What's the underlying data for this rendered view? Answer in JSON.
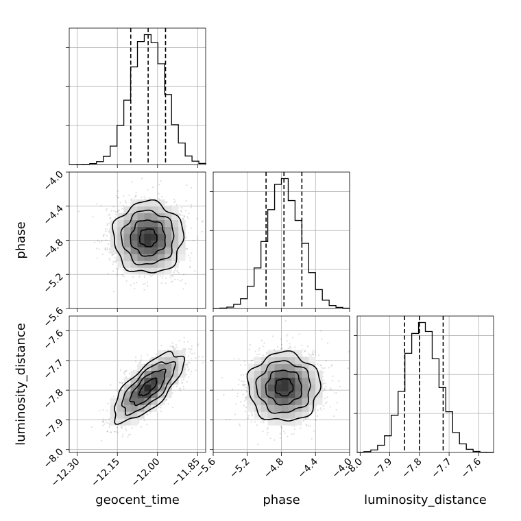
{
  "chart_data": {
    "type": "corner",
    "parameters": [
      "geocent_time",
      "phase",
      "luminosity_distance"
    ],
    "axes": {
      "geocent_time": {
        "range": [
          -12.33,
          -11.82
        ],
        "ticks": [
          -12.3,
          -12.15,
          -12.0,
          -11.85
        ],
        "tick_labels": [
          "−12.30",
          "−12.15",
          "−12.00",
          "−11.85"
        ],
        "mean": -12.035,
        "sd": 0.065
      },
      "phase": {
        "range": [
          -5.6,
          -4.0
        ],
        "ticks": [
          -5.6,
          -5.2,
          -4.8,
          -4.4,
          -4.0
        ],
        "tick_labels": [
          "−5.6",
          "−5.2",
          "−4.8",
          "−4.4",
          "−4.0"
        ],
        "mean": -4.77,
        "sd": 0.21
      },
      "luminosity_distance": {
        "range": [
          -8.01,
          -7.55
        ],
        "ticks": [
          -8.0,
          -7.9,
          -7.8,
          -7.7,
          -7.6
        ],
        "tick_labels": [
          "−8.0",
          "−7.9",
          "−7.8",
          "−7.7",
          "−7.6"
        ],
        "mean": -7.79,
        "sd": 0.058
      }
    },
    "quantiles": {
      "geocent_time": [
        -12.1,
        -12.035,
        -11.97
      ],
      "phase": [
        -4.98,
        -4.77,
        -4.56
      ],
      "luminosity_distance": [
        -7.85,
        -7.8,
        -7.72
      ]
    },
    "correlations": {
      "geocent_time|phase": 0.0,
      "geocent_time|luminosity_distance": 0.72,
      "phase|luminosity_distance": 0.0
    },
    "contour_levels_sigma": [
      0.5,
      1.0,
      1.5,
      2.0
    ],
    "xlabels": [
      "geocent_time",
      "phase",
      "luminosity_distance"
    ],
    "ylabels": [
      "",
      "phase",
      "luminosity_distance"
    ],
    "grid": true,
    "colors": {
      "line": "#000000",
      "grid": "#b0b0b0",
      "density_max": "#333333"
    }
  }
}
